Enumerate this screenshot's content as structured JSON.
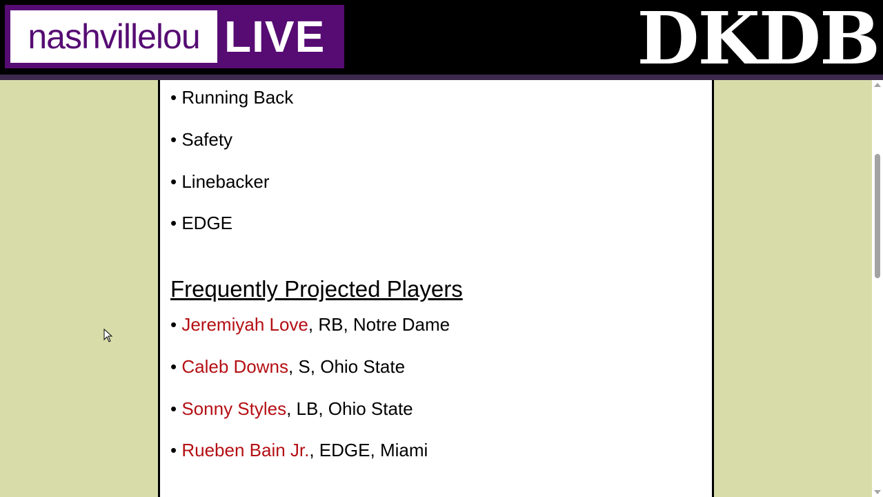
{
  "header": {
    "logo_left": "nashvillelou",
    "logo_right": "LIVE",
    "brand": "DKDB"
  },
  "positions": [
    "Running Back",
    "Safety",
    "Linebacker",
    "EDGE"
  ],
  "players_heading": "Frequently Projected Players",
  "bullet": "•",
  "players": [
    {
      "name": "Jeremiyah Love",
      "details": ", RB, Notre Dame"
    },
    {
      "name": "Caleb Downs",
      "details": ", S, Ohio State"
    },
    {
      "name": "Sonny Styles",
      "details": ", LB, Ohio State"
    },
    {
      "name": "Rueben Bain Jr.",
      "details": ", EDGE, Miami"
    }
  ],
  "colors": {
    "link": "#b40f14",
    "background": "#d8dca9",
    "brand_purple": "#560c73"
  }
}
